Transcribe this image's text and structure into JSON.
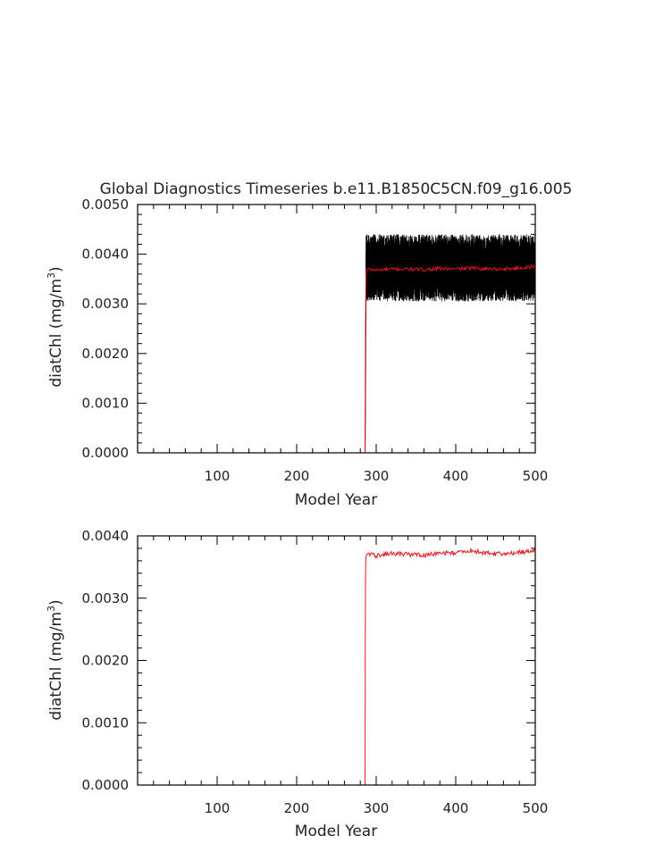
{
  "title": "Global Diagnostics Timeseries b.e11.B1850C5CN.f09_g16.005",
  "colors": {
    "monthly": "#000000",
    "annual": "#e8141c",
    "axes": "#000000",
    "text": "#222222"
  },
  "chart_data": [
    {
      "type": "line",
      "title": "Global Diagnostics Timeseries b.e11.B1850C5CN.f09_g16.005",
      "xlabel": "Model Year",
      "ylabel": {
        "main": "diatChl (mg/m",
        "sup": "3",
        "close": ")"
      },
      "xlim": [
        0,
        500
      ],
      "ylim": [
        0,
        0.005
      ],
      "x_ticks": [
        {
          "value": 100,
          "label": "100"
        },
        {
          "value": 200,
          "label": "200"
        },
        {
          "value": 300,
          "label": "300"
        },
        {
          "value": 400,
          "label": "400"
        },
        {
          "value": 500,
          "label": "500"
        }
      ],
      "y_ticks": [
        {
          "value": 0.0,
          "label": "0.0000"
        },
        {
          "value": 0.001,
          "label": "0.0010"
        },
        {
          "value": 0.002,
          "label": "0.0020"
        },
        {
          "value": 0.003,
          "label": "0.0030"
        },
        {
          "value": 0.004,
          "label": "0.0040"
        },
        {
          "value": 0.005,
          "label": "0.0050"
        }
      ],
      "series": [
        {
          "kind": "monthly-band",
          "color": "#000000",
          "segments": [
            {
              "x": [
                1,
                286
              ],
              "y": [
                0.0,
                0.0
              ]
            },
            {
              "x": [
                286,
                286.4,
                286.8,
                287.2,
                288
              ],
              "y": [
                0.0,
                0.0008,
                0.0021,
                0.0032,
                0.0037
              ]
            }
          ],
          "band": {
            "x_start": 287,
            "x_end": 500,
            "low": 0.00305,
            "high": 0.0044,
            "center": 0.0037
          }
        },
        {
          "kind": "annual-mean",
          "color": "#e8141c",
          "x": [
            1,
            286,
            286.5,
            287,
            288,
            290,
            300,
            320,
            340,
            360,
            380,
            400,
            420,
            440,
            460,
            480,
            500
          ],
          "y": [
            0.0,
            0.0,
            0.0024,
            0.0034,
            0.0037,
            0.0037,
            0.00368,
            0.0037,
            0.0037,
            0.00369,
            0.00371,
            0.0037,
            0.00372,
            0.00371,
            0.0037,
            0.00372,
            0.00375
          ]
        }
      ]
    },
    {
      "type": "line",
      "xlabel": "Model Year",
      "ylabel": {
        "main": "diatChl (mg/m",
        "sup": "3",
        "close": ")"
      },
      "xlim": [
        0,
        500
      ],
      "ylim": [
        0,
        0.004
      ],
      "x_ticks": [
        {
          "value": 100,
          "label": "100"
        },
        {
          "value": 200,
          "label": "200"
        },
        {
          "value": 300,
          "label": "300"
        },
        {
          "value": 400,
          "label": "400"
        },
        {
          "value": 500,
          "label": "500"
        }
      ],
      "y_ticks": [
        {
          "value": 0.0,
          "label": "0.0000"
        },
        {
          "value": 0.001,
          "label": "0.0010"
        },
        {
          "value": 0.002,
          "label": "0.0020"
        },
        {
          "value": 0.003,
          "label": "0.0030"
        },
        {
          "value": 0.004,
          "label": "0.0040"
        }
      ],
      "series": [
        {
          "kind": "annual-mean",
          "color": "#e8141c",
          "x": [
            1,
            286,
            286.3,
            286.6,
            287,
            288,
            290,
            300,
            320,
            340,
            360,
            380,
            400,
            420,
            440,
            460,
            480,
            500
          ],
          "y": [
            0.0,
            0.0,
            0.0024,
            0.0034,
            0.00365,
            0.0037,
            0.00372,
            0.00368,
            0.00372,
            0.0037,
            0.00369,
            0.00372,
            0.00373,
            0.00376,
            0.00372,
            0.00371,
            0.00374,
            0.00376
          ]
        }
      ]
    }
  ]
}
